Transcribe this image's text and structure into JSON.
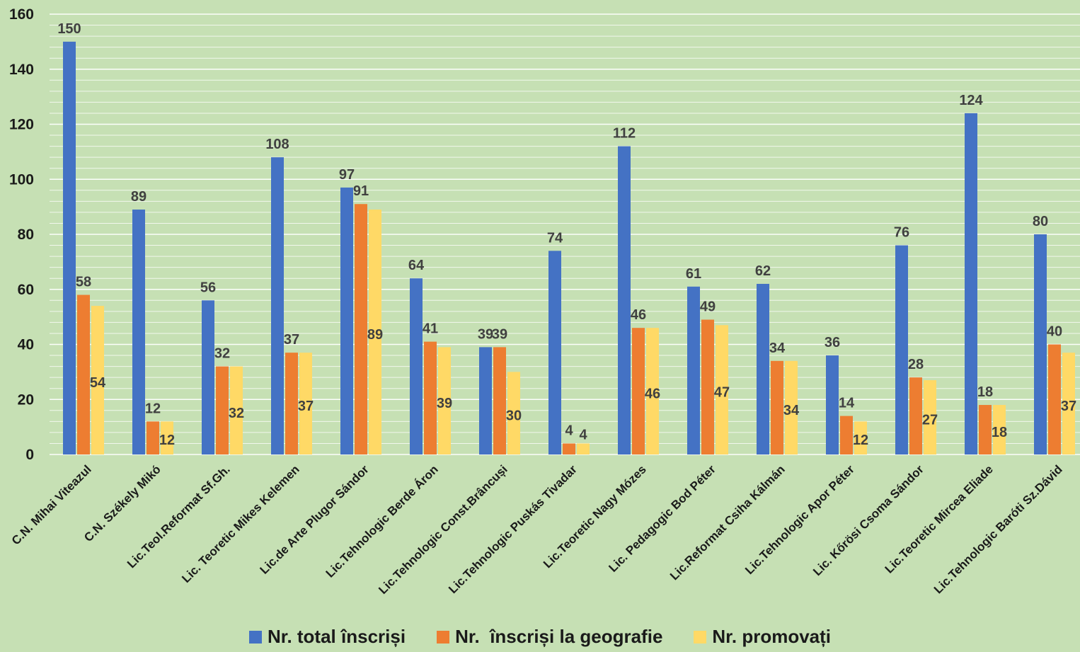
{
  "chart_data": {
    "type": "bar",
    "title": "",
    "xlabel": "",
    "ylabel": "",
    "ylim": [
      0,
      160
    ],
    "y_ticks": [
      0,
      20,
      40,
      60,
      80,
      100,
      120,
      140,
      160
    ],
    "grid": true,
    "legend_position": "bottom",
    "categories": [
      "C.N. Mihai Viteazul",
      "C.N. Székely Mikó",
      "Lic.Teol.Reformat Sf.Gh.",
      "Lic. Teoretic Mikes Kelemen",
      "Lic.de Arte Plugor Sándor",
      "Lic.Tehnologic Berde Áron",
      "Lic.Tehnologic Const.Brâncuși",
      "Lic.Tehnologic Puskás Tivadar",
      "Lic.Teoretic Nagy Mózes",
      "Lic. Pedagogic Bod Péter",
      "Lic.Reformat Csiha Kálmán",
      "Lic.Tehnologic Apor Péter",
      "Lic. Kőrösi Csoma Sándor",
      "Lic.Teoretic Mircea Eliade",
      "Lic.Tehnologic Baróti Sz.Dávid"
    ],
    "series": [
      {
        "name": "Nr. total înscriși",
        "color": "#4472c4",
        "values": [
          150,
          89,
          56,
          108,
          97,
          64,
          39,
          74,
          112,
          61,
          62,
          36,
          76,
          124,
          80
        ]
      },
      {
        "name": "Nr.  înscriși la geografie",
        "color": "#ed7d31",
        "values": [
          58,
          12,
          32,
          37,
          91,
          41,
          39,
          4,
          46,
          49,
          34,
          14,
          28,
          18,
          40
        ]
      },
      {
        "name": "Nr. promovați",
        "color": "#ffd966",
        "values": [
          54,
          12,
          32,
          37,
          89,
          39,
          30,
          4,
          46,
          47,
          34,
          12,
          27,
          18,
          37
        ]
      }
    ]
  }
}
